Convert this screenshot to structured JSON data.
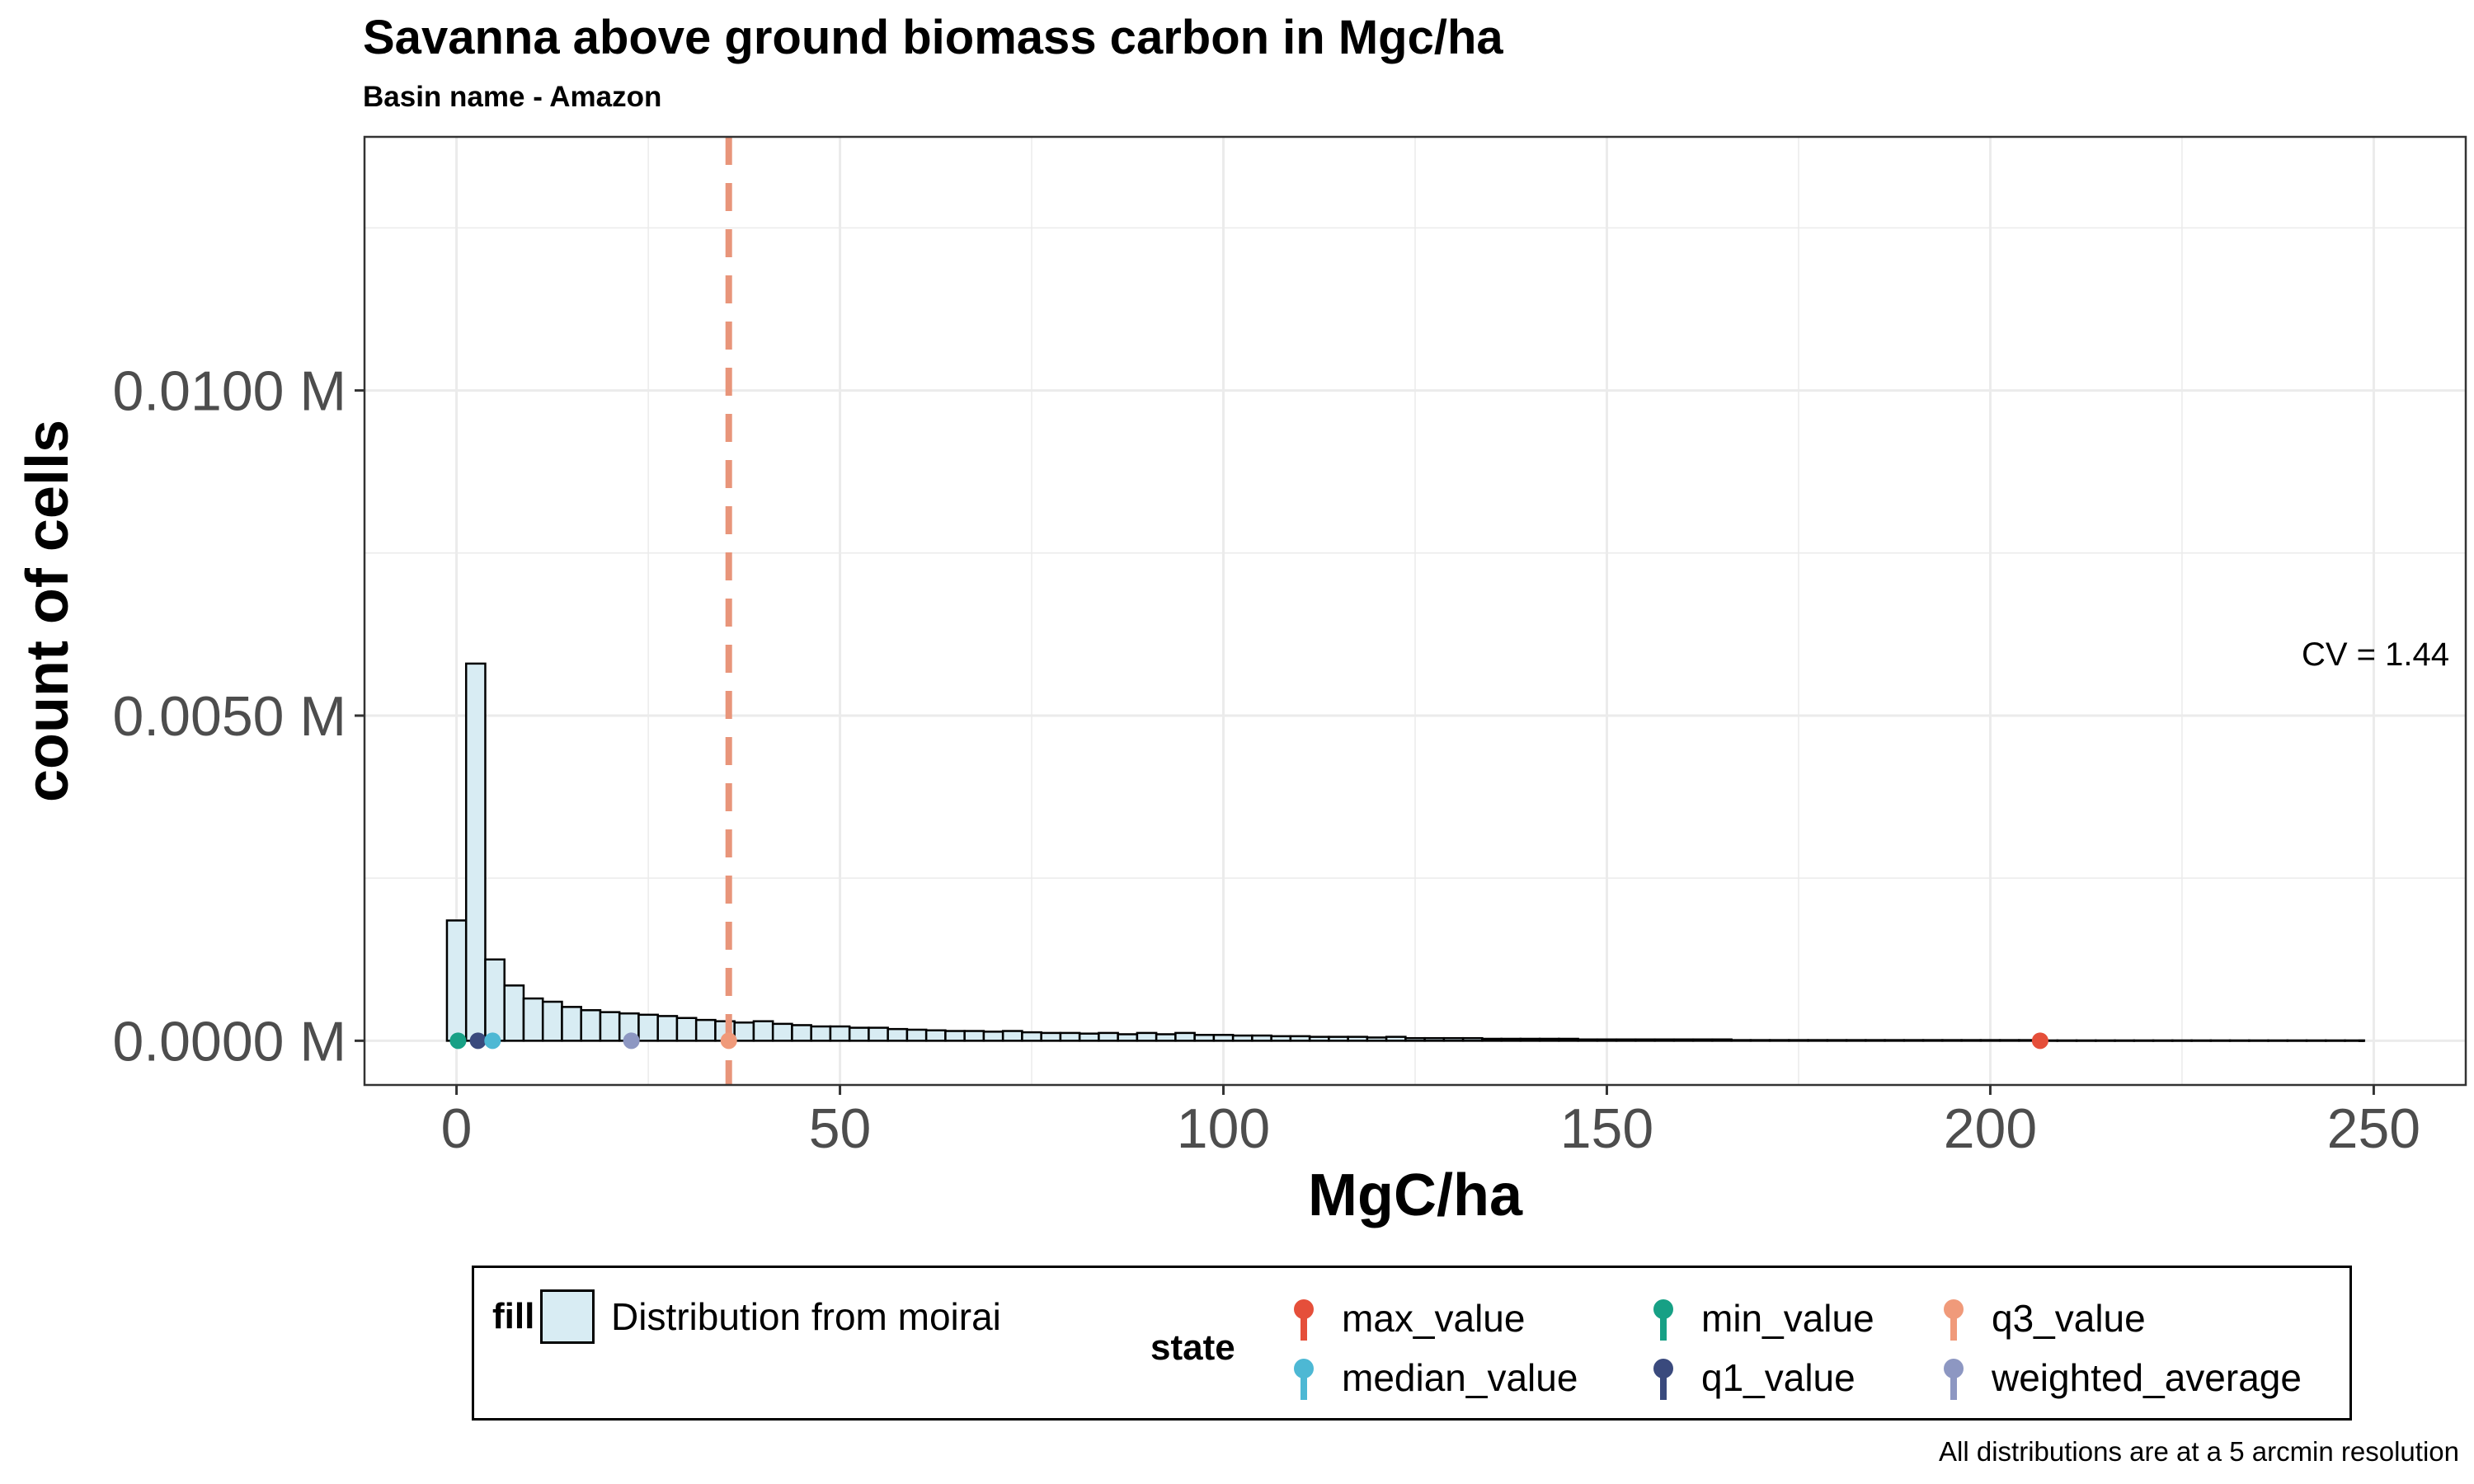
{
  "chart_data": {
    "type": "bar",
    "title": "Savanna above ground biomass carbon in Mgc/ha",
    "subtitle": "Basin name - Amazon",
    "xlabel": "MgC/ha",
    "ylabel": "count of cells",
    "caption": "All distributions are at a 5 arcmin resolution",
    "annotation": "CV = 1.44",
    "xlim": [
      -12,
      262
    ],
    "ylim": [
      -0.00068,
      0.0139
    ],
    "x_ticks": [
      0,
      50,
      100,
      150,
      200,
      250
    ],
    "x_tick_labels": [
      "0",
      "50",
      "100",
      "150",
      "200",
      "250"
    ],
    "y_ticks": [
      0.0,
      0.005,
      0.01
    ],
    "y_tick_labels": [
      "0.0000 M",
      "0.0050 M",
      "0.0100 M"
    ],
    "grid": true,
    "bin_width": 2.5,
    "bin_start": -1.25,
    "series": [
      {
        "name": "Distribution from moirai",
        "fill": "#d8ecf3",
        "values": [
          0.00185,
          0.0058,
          0.00125,
          0.00085,
          0.00065,
          0.0006,
          0.00052,
          0.00047,
          0.00044,
          0.00042,
          0.0004,
          0.00038,
          0.00035,
          0.00032,
          0.0003,
          0.00028,
          0.0003,
          0.00026,
          0.00024,
          0.00022,
          0.00022,
          0.0002,
          0.0002,
          0.00018,
          0.00017,
          0.00016,
          0.00015,
          0.00015,
          0.00014,
          0.00015,
          0.00013,
          0.00012,
          0.00012,
          0.00011,
          0.00012,
          0.0001,
          0.00012,
          0.0001,
          0.00012,
          9e-05,
          9e-05,
          8e-05,
          8e-05,
          7e-05,
          7e-05,
          6e-05,
          6e-05,
          6e-05,
          5e-05,
          6e-05,
          4e-05,
          4e-05,
          4e-05,
          4e-05,
          3e-05,
          3e-05,
          3e-05,
          3e-05,
          3e-05,
          2e-05,
          2e-05,
          2e-05,
          2e-05,
          2e-05,
          2e-05,
          2e-05,
          2e-05,
          1e-05,
          1e-05,
          1e-05,
          1e-05,
          1e-05,
          1e-05,
          1e-05,
          1e-05,
          1e-05,
          1e-05,
          1e-05,
          1e-05,
          1e-05,
          1e-05,
          1e-05,
          1e-05,
          5e-06,
          5e-06,
          5e-06,
          5e-06,
          5e-06,
          5e-06,
          5e-06,
          5e-06,
          5e-06,
          5e-06,
          5e-06,
          5e-06,
          5e-06,
          5e-06,
          5e-06,
          5e-06,
          5e-06
        ]
      }
    ],
    "vline": {
      "x": 35.5,
      "color": "#e8957a",
      "style": "dashed"
    },
    "points": [
      {
        "name": "min_value",
        "x": 0.2,
        "color": "#17a085"
      },
      {
        "name": "q1_value",
        "x": 2.8,
        "color": "#3a4a7d"
      },
      {
        "name": "median_value",
        "x": 4.7,
        "color": "#4db8d4"
      },
      {
        "name": "weighted_average",
        "x": 22.8,
        "color": "#8d97c2"
      },
      {
        "name": "q3_value",
        "x": 35.5,
        "color": "#f09a7a"
      },
      {
        "name": "max_value",
        "x": 206.5,
        "color": "#e54f3a"
      }
    ],
    "line_end_x": 248,
    "legend": {
      "placement": "bottom",
      "fill_title": "fill",
      "fill_label": "Distribution from moirai",
      "state_title": "state",
      "state_items": [
        {
          "label": "max_value",
          "color": "#e54f3a"
        },
        {
          "label": "median_value",
          "color": "#4db8d4"
        },
        {
          "label": "min_value",
          "color": "#17a085"
        },
        {
          "label": "q1_value",
          "color": "#3a4a7d"
        },
        {
          "label": "q3_value",
          "color": "#f09a7a"
        },
        {
          "label": "weighted_average",
          "color": "#8d97c2"
        }
      ]
    }
  }
}
